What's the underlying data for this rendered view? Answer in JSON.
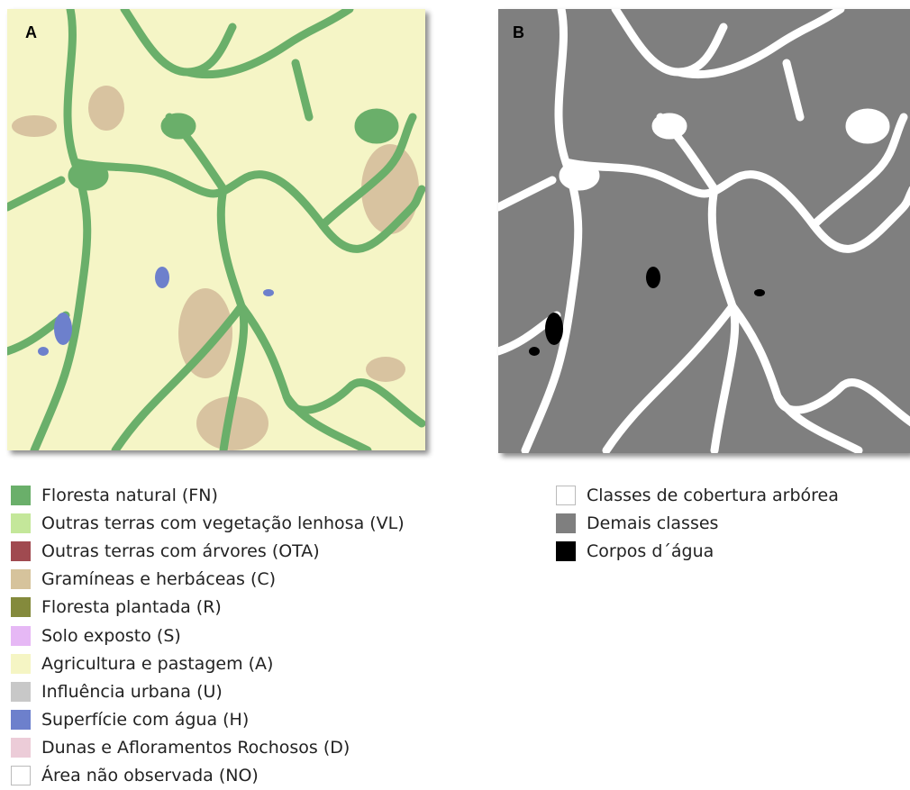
{
  "panels": [
    {
      "label": "A",
      "legend": [
        {
          "label": "Floresta natural (FN)",
          "color": "#6aaf6a"
        },
        {
          "label": "Outras terras com vegetação lenhosa (VL)",
          "color": "#c4e79a"
        },
        {
          "label": "Outras terras com árvores (OTA)",
          "color": "#a04a50"
        },
        {
          "label": "Gramíneas e herbáceas (C)",
          "color": "#d6c39c"
        },
        {
          "label": "Floresta plantada (R)",
          "color": "#848a3c"
        },
        {
          "label": "Solo exposto (S)",
          "color": "#e6b8f5"
        },
        {
          "label": "Agricultura e pastagem (A)",
          "color": "#f5f5c4"
        },
        {
          "label": "Influência urbana (U)",
          "color": "#c8c8c8"
        },
        {
          "label": "Superfície com água (H)",
          "color": "#6d80cc"
        },
        {
          "label": "Dunas e Afloramentos Rochosos (D)",
          "color": "#ecccd8"
        },
        {
          "label": "Área não observada (NO)",
          "color": "#ffffff"
        }
      ]
    },
    {
      "label": "B",
      "legend": [
        {
          "label": "Classes de cobertura arbórea",
          "color": "#ffffff"
        },
        {
          "label": "Demais classes",
          "color": "#7f7f7f"
        },
        {
          "label": "Corpos d´água",
          "color": "#000000"
        }
      ]
    }
  ]
}
